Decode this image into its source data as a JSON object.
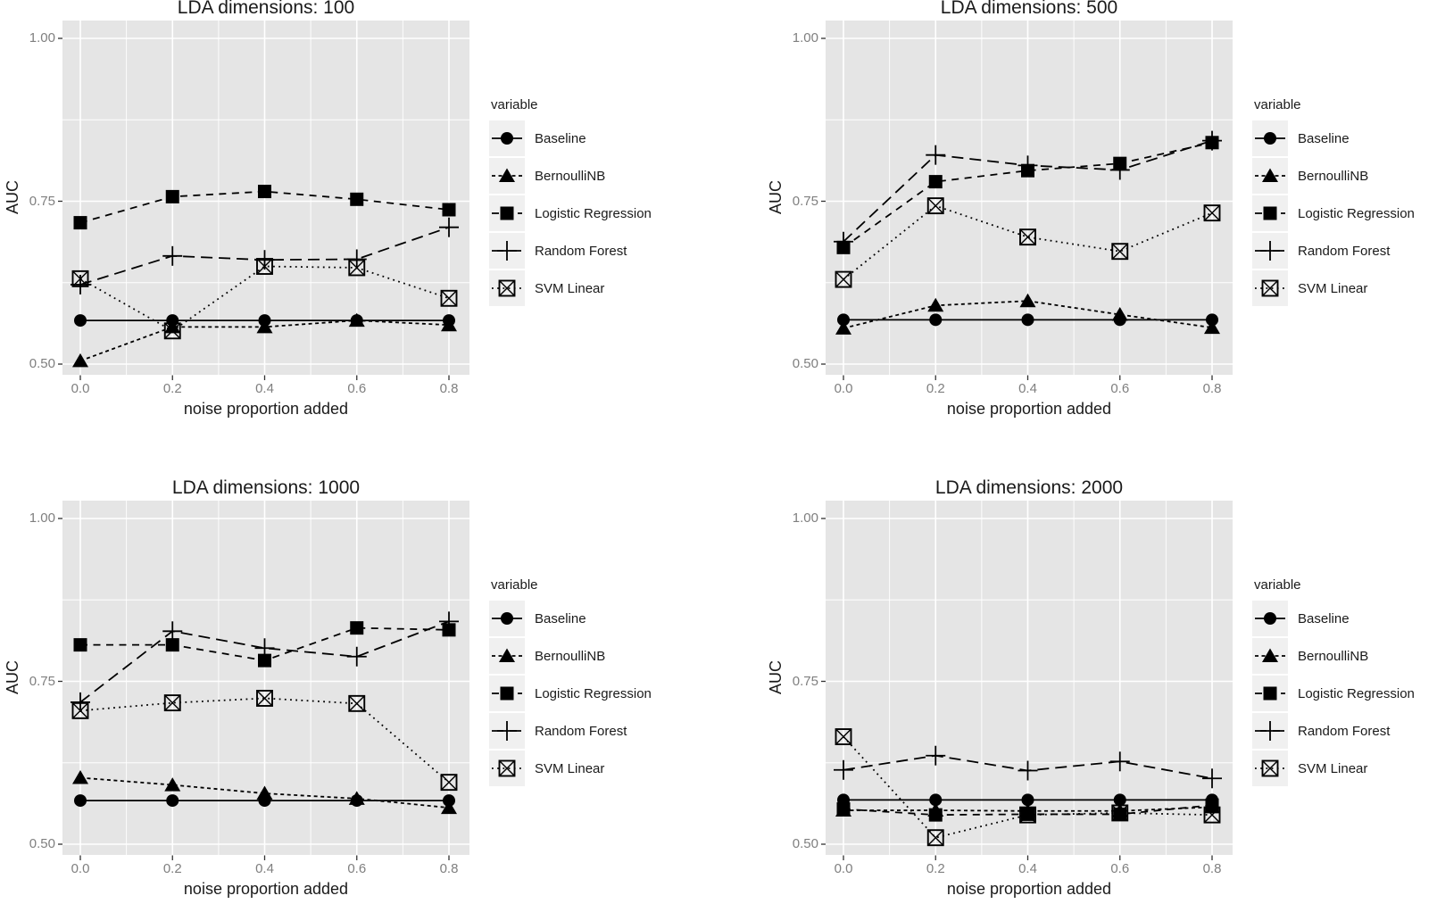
{
  "styles": {
    "series_color": "#000000",
    "panel_bg": "#E5E5E5",
    "grid_color": "#FFFFFF",
    "tick_mark_color": "#333333",
    "tick_label_color": "#7F7F7F",
    "text_color": "#1A1A1A",
    "legend_key_bg": "#F0F0F0",
    "page_bg": "#FFFFFF"
  },
  "chart_data": [
    {
      "type": "line",
      "title": "LDA dimensions: 100",
      "xlabel": "noise proportion added",
      "ylabel": "AUC",
      "legend_title": "variable",
      "legend_position": "right",
      "grid": true,
      "x": [
        0.0,
        0.2,
        0.4,
        0.6,
        0.8
      ],
      "x_tick_labels": [
        "0.0",
        "0.2",
        "0.4",
        "0.6",
        "0.8"
      ],
      "y_ticks": [
        1.0,
        0.75,
        0.5
      ],
      "y_tick_labels": [
        "1.00",
        "0.75",
        "0.50"
      ],
      "y_minor_ticks": [
        0.875,
        0.625
      ],
      "x_minor_ticks": [
        0.1,
        0.3,
        0.5,
        0.7
      ],
      "ylim": [
        0.48,
        1.03
      ],
      "series": [
        {
          "name": "Baseline",
          "marker": "filled-circle",
          "linetype": "solid",
          "values": [
            0.567,
            0.567,
            0.567,
            0.567,
            0.567
          ]
        },
        {
          "name": "BernoulliNB",
          "marker": "filled-triangle",
          "linetype": "dash-small",
          "values": [
            0.505,
            0.557,
            0.557,
            0.567,
            0.56
          ]
        },
        {
          "name": "Logistic Regression",
          "marker": "filled-square",
          "linetype": "dash",
          "values": [
            0.717,
            0.757,
            0.765,
            0.753,
            0.737
          ]
        },
        {
          "name": "Random Forest",
          "marker": "plus",
          "linetype": "dash-long",
          "values": [
            0.622,
            0.666,
            0.66,
            0.661,
            0.71
          ]
        },
        {
          "name": "SVM Linear",
          "marker": "square-x",
          "linetype": "dotted",
          "values": [
            0.631,
            0.551,
            0.65,
            0.648,
            0.601
          ]
        }
      ]
    },
    {
      "type": "line",
      "title": "LDA dimensions: 500",
      "xlabel": "noise proportion added",
      "ylabel": "AUC",
      "legend_title": "variable",
      "legend_position": "right",
      "grid": true,
      "x": [
        0.0,
        0.2,
        0.4,
        0.6,
        0.8
      ],
      "x_tick_labels": [
        "0.0",
        "0.2",
        "0.4",
        "0.6",
        "0.8"
      ],
      "y_ticks": [
        1.0,
        0.75,
        0.5
      ],
      "y_tick_labels": [
        "1.00",
        "0.75",
        "0.50"
      ],
      "y_minor_ticks": [
        0.875,
        0.625
      ],
      "x_minor_ticks": [
        0.1,
        0.3,
        0.5,
        0.7
      ],
      "ylim": [
        0.48,
        1.03
      ],
      "series": [
        {
          "name": "Baseline",
          "marker": "filled-circle",
          "linetype": "solid",
          "values": [
            0.568,
            0.568,
            0.568,
            0.568,
            0.568
          ]
        },
        {
          "name": "BernoulliNB",
          "marker": "filled-triangle",
          "linetype": "dash-small",
          "values": [
            0.555,
            0.59,
            0.597,
            0.576,
            0.556
          ]
        },
        {
          "name": "Logistic Regression",
          "marker": "filled-square",
          "linetype": "dash",
          "values": [
            0.679,
            0.78,
            0.797,
            0.808,
            0.84
          ]
        },
        {
          "name": "Random Forest",
          "marker": "plus",
          "linetype": "dash-long",
          "values": [
            0.688,
            0.821,
            0.805,
            0.798,
            0.843
          ]
        },
        {
          "name": "SVM Linear",
          "marker": "square-x",
          "linetype": "dotted",
          "values": [
            0.63,
            0.743,
            0.695,
            0.673,
            0.732
          ]
        }
      ]
    },
    {
      "type": "line",
      "title": "LDA dimensions: 1000",
      "xlabel": "noise proportion added",
      "ylabel": "AUC",
      "legend_title": "variable",
      "legend_position": "right",
      "grid": true,
      "x": [
        0.0,
        0.2,
        0.4,
        0.6,
        0.8
      ],
      "x_tick_labels": [
        "0.0",
        "0.2",
        "0.4",
        "0.6",
        "0.8"
      ],
      "y_ticks": [
        1.0,
        0.75,
        0.5
      ],
      "y_tick_labels": [
        "1.00",
        "0.75",
        "0.50"
      ],
      "y_minor_ticks": [
        0.875,
        0.625
      ],
      "x_minor_ticks": [
        0.1,
        0.3,
        0.5,
        0.7
      ],
      "ylim": [
        0.48,
        1.03
      ],
      "series": [
        {
          "name": "Baseline",
          "marker": "filled-circle",
          "linetype": "solid",
          "values": [
            0.567,
            0.567,
            0.567,
            0.567,
            0.567
          ]
        },
        {
          "name": "BernoulliNB",
          "marker": "filled-triangle",
          "linetype": "dash-small",
          "values": [
            0.602,
            0.591,
            0.578,
            0.57,
            0.556
          ]
        },
        {
          "name": "Logistic Regression",
          "marker": "filled-square",
          "linetype": "dash",
          "values": [
            0.806,
            0.806,
            0.782,
            0.832,
            0.829
          ]
        },
        {
          "name": "Random Forest",
          "marker": "plus",
          "linetype": "dash-long",
          "values": [
            0.718,
            0.827,
            0.801,
            0.788,
            0.842
          ]
        },
        {
          "name": "SVM Linear",
          "marker": "square-x",
          "linetype": "dotted",
          "values": [
            0.705,
            0.717,
            0.724,
            0.716,
            0.595
          ]
        }
      ]
    },
    {
      "type": "line",
      "title": "LDA dimensions: 2000",
      "xlabel": "noise proportion added",
      "ylabel": "AUC",
      "legend_title": "variable",
      "legend_position": "right",
      "grid": true,
      "x": [
        0.0,
        0.2,
        0.4,
        0.6,
        0.8
      ],
      "x_tick_labels": [
        "0.0",
        "0.2",
        "0.4",
        "0.6",
        "0.8"
      ],
      "y_ticks": [
        1.0,
        0.75,
        0.5
      ],
      "y_tick_labels": [
        "1.00",
        "0.75",
        "0.50"
      ],
      "y_minor_ticks": [
        0.875,
        0.625
      ],
      "x_minor_ticks": [
        0.1,
        0.3,
        0.5,
        0.7
      ],
      "ylim": [
        0.48,
        1.03
      ],
      "series": [
        {
          "name": "Baseline",
          "marker": "filled-circle",
          "linetype": "solid",
          "values": [
            0.568,
            0.568,
            0.568,
            0.568,
            0.568
          ]
        },
        {
          "name": "BernoulliNB",
          "marker": "filled-triangle",
          "linetype": "dash-small",
          "values": [
            0.552,
            0.552,
            0.551,
            0.551,
            0.557
          ]
        },
        {
          "name": "Logistic Regression",
          "marker": "filled-square",
          "linetype": "dash",
          "values": [
            0.554,
            0.545,
            0.546,
            0.546,
            0.56
          ]
        },
        {
          "name": "Random Forest",
          "marker": "plus",
          "linetype": "dash-long",
          "values": [
            0.614,
            0.636,
            0.613,
            0.627,
            0.601
          ]
        },
        {
          "name": "SVM Linear",
          "marker": "square-x",
          "linetype": "dotted",
          "values": [
            0.665,
            0.51,
            0.545,
            0.548,
            0.545
          ]
        }
      ]
    }
  ]
}
